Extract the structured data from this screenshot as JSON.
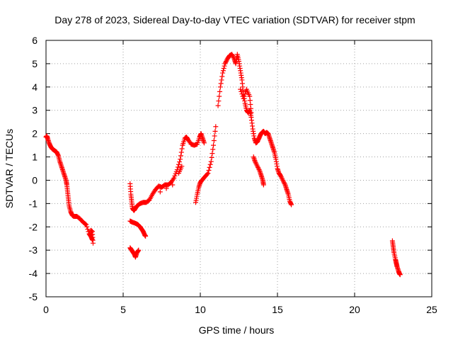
{
  "chart_data": {
    "type": "scatter",
    "title": "Day 278 of 2023, Sidereal Day-to-day VTEC variation (SDTVAR) for receiver stpm",
    "xlabel": "GPS time / hours",
    "ylabel": "SDTVAR / TECUs",
    "xlim": [
      0,
      25
    ],
    "ylim": [
      -5,
      6
    ],
    "xticks": [
      "0",
      "5",
      "10",
      "15",
      "20",
      "25"
    ],
    "yticks": [
      "-5",
      "-4",
      "-3",
      "-2",
      "-1",
      "0",
      "1",
      "2",
      "3",
      "4",
      "5",
      "6"
    ],
    "grid": true,
    "marker": "plus",
    "color": "#ff0000",
    "series": [
      {
        "values": [
          [
            0.0,
            1.85
          ],
          [
            0.05,
            1.9
          ],
          [
            0.1,
            1.8
          ],
          [
            0.2,
            1.6
          ],
          [
            0.3,
            1.45
          ],
          [
            0.4,
            1.35
          ],
          [
            0.5,
            1.3
          ],
          [
            0.6,
            1.25
          ],
          [
            0.7,
            1.2
          ],
          [
            0.8,
            1.05
          ],
          [
            0.9,
            0.8
          ],
          [
            1.0,
            0.6
          ],
          [
            1.1,
            0.4
          ],
          [
            1.2,
            0.2
          ],
          [
            1.3,
            0.0
          ],
          [
            1.35,
            -0.2
          ],
          [
            1.4,
            -0.5
          ],
          [
            1.45,
            -0.8
          ],
          [
            1.5,
            -1.1
          ],
          [
            1.6,
            -1.35
          ],
          [
            1.7,
            -1.5
          ],
          [
            1.8,
            -1.55
          ],
          [
            2.0,
            -1.55
          ],
          [
            2.2,
            -1.65
          ],
          [
            2.4,
            -1.8
          ],
          [
            2.6,
            -1.9
          ],
          [
            2.8,
            -2.3
          ],
          [
            2.9,
            -2.4
          ],
          [
            3.0,
            -2.55
          ],
          [
            2.9,
            -2.15
          ],
          [
            3.0,
            -2.2
          ],
          [
            3.05,
            -2.7
          ]
        ]
      },
      {
        "values": [
          [
            5.45,
            -0.15
          ],
          [
            5.5,
            -0.6
          ],
          [
            5.55,
            -0.9
          ],
          [
            5.6,
            -1.2
          ],
          [
            5.7,
            -1.3
          ],
          [
            5.8,
            -1.2
          ],
          [
            5.9,
            -1.1
          ],
          [
            6.1,
            -1.0
          ],
          [
            6.3,
            -0.95
          ],
          [
            6.5,
            -0.95
          ],
          [
            6.7,
            -0.85
          ],
          [
            6.9,
            -0.6
          ],
          [
            7.1,
            -0.4
          ],
          [
            7.3,
            -0.25
          ],
          [
            7.5,
            -0.3
          ],
          [
            7.7,
            -0.2
          ],
          [
            7.9,
            -0.2
          ],
          [
            8.1,
            -0.1
          ],
          [
            8.3,
            0.1
          ],
          [
            8.5,
            0.45
          ],
          [
            8.7,
            0.9
          ],
          [
            8.85,
            1.5
          ],
          [
            9.0,
            1.8
          ],
          [
            9.1,
            1.85
          ],
          [
            9.2,
            1.75
          ],
          [
            9.4,
            1.55
          ],
          [
            9.6,
            1.5
          ],
          [
            9.8,
            1.55
          ],
          [
            9.95,
            1.85
          ],
          [
            10.05,
            2.0
          ],
          [
            10.15,
            1.8
          ],
          [
            10.25,
            1.6
          ],
          [
            7.4,
            -0.5
          ],
          [
            7.8,
            -0.35
          ],
          [
            8.2,
            -0.2
          ],
          [
            8.6,
            0.3
          ],
          [
            8.8,
            0.6
          ]
        ]
      },
      {
        "values": [
          [
            5.45,
            -1.75
          ],
          [
            5.6,
            -1.8
          ],
          [
            5.8,
            -1.85
          ],
          [
            5.95,
            -1.9
          ],
          [
            6.1,
            -2.0
          ],
          [
            6.2,
            -2.1
          ],
          [
            6.3,
            -2.2
          ],
          [
            6.4,
            -2.35
          ],
          [
            6.45,
            -2.4
          ]
        ]
      },
      {
        "values": [
          [
            5.45,
            -2.9
          ],
          [
            5.55,
            -3.0
          ],
          [
            5.65,
            -3.1
          ],
          [
            5.75,
            -3.2
          ],
          [
            5.8,
            -3.3
          ],
          [
            5.9,
            -3.1
          ],
          [
            6.0,
            -3.0
          ]
        ]
      },
      {
        "values": [
          [
            9.7,
            -0.95
          ],
          [
            9.8,
            -0.6
          ],
          [
            9.9,
            -0.3
          ],
          [
            10.0,
            -0.1
          ],
          [
            10.1,
            0.0
          ],
          [
            10.3,
            0.15
          ],
          [
            10.5,
            0.3
          ],
          [
            10.7,
            0.8
          ],
          [
            10.85,
            1.5
          ],
          [
            11.0,
            2.3
          ],
          [
            11.15,
            3.2
          ],
          [
            11.3,
            4.0
          ],
          [
            11.45,
            4.6
          ],
          [
            11.6,
            5.0
          ],
          [
            11.75,
            5.2
          ],
          [
            11.9,
            5.35
          ],
          [
            12.05,
            5.4
          ],
          [
            12.2,
            5.2
          ],
          [
            12.3,
            5.0
          ],
          [
            12.4,
            5.4
          ],
          [
            12.5,
            5.1
          ],
          [
            12.6,
            4.7
          ],
          [
            12.7,
            4.3
          ],
          [
            12.8,
            3.7
          ],
          [
            12.9,
            3.3
          ],
          [
            13.0,
            3.0
          ],
          [
            13.1,
            2.9
          ],
          [
            13.2,
            3.0
          ],
          [
            13.3,
            2.7
          ],
          [
            13.4,
            2.2
          ],
          [
            13.5,
            1.8
          ],
          [
            13.6,
            1.6
          ],
          [
            13.7,
            1.65
          ],
          [
            13.8,
            1.8
          ],
          [
            13.9,
            1.95
          ],
          [
            14.0,
            2.05
          ],
          [
            14.1,
            2.1
          ],
          [
            14.2,
            2.0
          ],
          [
            14.3,
            2.05
          ],
          [
            14.4,
            2.0
          ],
          [
            14.5,
            1.8
          ],
          [
            14.6,
            1.6
          ],
          [
            14.7,
            1.4
          ],
          [
            14.8,
            1.2
          ],
          [
            14.9,
            0.9
          ],
          [
            15.0,
            0.5
          ],
          [
            15.1,
            0.3
          ],
          [
            15.2,
            0.2
          ],
          [
            15.35,
            0.0
          ],
          [
            15.5,
            -0.2
          ],
          [
            15.6,
            -0.4
          ],
          [
            15.7,
            -0.6
          ],
          [
            15.8,
            -0.9
          ],
          [
            15.9,
            -1.05
          ],
          [
            12.6,
            3.9
          ],
          [
            12.8,
            3.5
          ],
          [
            13.0,
            3.9
          ],
          [
            13.2,
            3.6
          ],
          [
            13.3,
            2.9
          ],
          [
            13.45,
            1.0
          ],
          [
            13.55,
            0.8
          ],
          [
            13.7,
            0.6
          ],
          [
            13.85,
            0.4
          ],
          [
            13.95,
            0.2
          ],
          [
            14.05,
            0.0
          ],
          [
            14.1,
            -0.2
          ]
        ]
      },
      {
        "values": [
          [
            22.45,
            -2.6
          ],
          [
            22.5,
            -2.85
          ],
          [
            22.55,
            -3.1
          ],
          [
            22.65,
            -3.4
          ],
          [
            22.7,
            -3.55
          ],
          [
            22.75,
            -3.7
          ],
          [
            22.85,
            -3.9
          ],
          [
            22.9,
            -4.0
          ],
          [
            22.95,
            -4.05
          ]
        ]
      }
    ]
  }
}
